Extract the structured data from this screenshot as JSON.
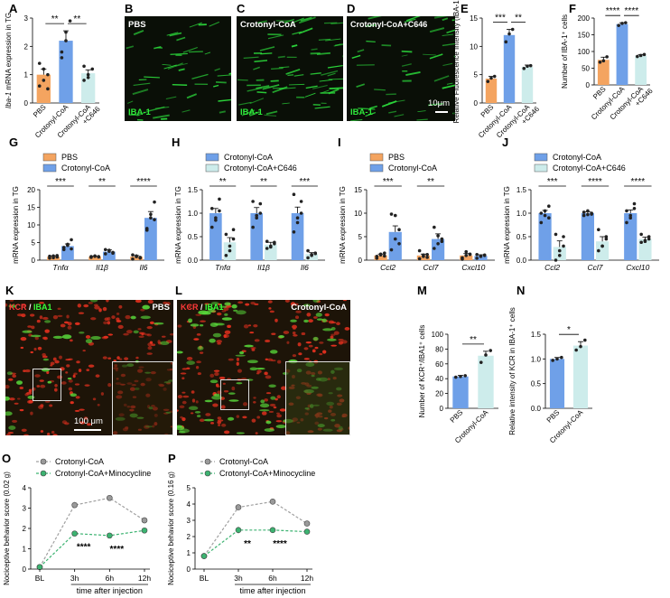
{
  "panels": {
    "A": "A",
    "B": "B",
    "C": "C",
    "D": "D",
    "E": "E",
    "F": "F",
    "G": "G",
    "H": "H",
    "I": "I",
    "J": "J",
    "K": "K",
    "L": "L",
    "M": "M",
    "N": "N",
    "O": "O",
    "P": "P"
  },
  "micrographs": {
    "B": {
      "label": "PBS",
      "stain": "IBA-1"
    },
    "C": {
      "label": "Crotonyl-CoA",
      "stain": "IBA-1"
    },
    "D": {
      "label": "Crotonyl-CoA+C646",
      "stain": "IBA-1",
      "scale": "10μm"
    },
    "K": {
      "stain_red": "KCR",
      "sep": " / ",
      "stain_green": "IBA1",
      "label": "PBS",
      "scale": "100 μm"
    },
    "L": {
      "stain_red": "KCR",
      "sep": " / ",
      "stain_green": "IBA1",
      "label": "Crotonyl-CoA"
    }
  },
  "colors": {
    "pbs": "#f4a460",
    "crotonyl": "#6fa0e8",
    "c646": "#cdeceb",
    "grey_line": "#a0a0a0",
    "green_line": "#3cb371"
  },
  "chart_data": [
    {
      "id": "A",
      "type": "bar",
      "ylabel": "Iba-1 mRNA expression in TG",
      "categories": [
        "PBS",
        "Crotonyl-CoA",
        "Crotonyl-CoA +C646"
      ],
      "values": [
        1.0,
        2.2,
        1.05
      ],
      "errors": [
        0.2,
        0.35,
        0.12
      ],
      "ylim": [
        0,
        3
      ],
      "yticks": [
        0,
        1,
        2,
        3
      ],
      "colors": [
        "#f4a460",
        "#6fa0e8",
        "#cdeceb"
      ],
      "points": [
        [
          0.6,
          0.8,
          1.0,
          1.4,
          1.2,
          0.5
        ],
        [
          1.6,
          2.5,
          2.9,
          1.8,
          2.2
        ],
        [
          0.8,
          1.0,
          1.2,
          1.3,
          0.9
        ]
      ],
      "sig": [
        {
          "from": 0,
          "to": 1,
          "label": "**"
        },
        {
          "from": 1,
          "to": 2,
          "label": "**"
        }
      ]
    },
    {
      "id": "E",
      "type": "bar",
      "ylabel": "Relative Fluorescence Intensity (IBA-1)",
      "categories": [
        "PBS",
        "Crotonyl-CoA",
        "Crotonyl-CoA +C646"
      ],
      "values": [
        4.3,
        12.0,
        6.4
      ],
      "errors": [
        0.4,
        1.0,
        0.3
      ],
      "ylim": [
        0,
        15
      ],
      "yticks": [
        0,
        5,
        10,
        15
      ],
      "colors": [
        "#f4a460",
        "#6fa0e8",
        "#cdeceb"
      ],
      "points": [
        [
          3.8,
          4.4,
          4.7
        ],
        [
          10.8,
          12.2,
          13.0
        ],
        [
          6.1,
          6.5,
          6.6
        ]
      ],
      "sig": [
        {
          "from": 0,
          "to": 1,
          "label": "***"
        },
        {
          "from": 1,
          "to": 2,
          "label": "**"
        }
      ]
    },
    {
      "id": "F",
      "type": "bar",
      "ylabel": "Number of IBA-1⁺ cells",
      "categories": [
        "PBS",
        "Crotonyl-CoA",
        "Crotonyl-CoA +C646"
      ],
      "values": [
        75,
        182,
        88
      ],
      "errors": [
        8,
        4,
        3
      ],
      "ylim": [
        0,
        200
      ],
      "yticks": [
        0,
        50,
        100,
        150,
        200
      ],
      "colors": [
        "#f4a460",
        "#6fa0e8",
        "#cdeceb"
      ],
      "points": [
        [
          68,
          72,
          84
        ],
        [
          178,
          184,
          186
        ],
        [
          85,
          88,
          91
        ]
      ],
      "sig": [
        {
          "from": 0,
          "to": 1,
          "label": "****"
        },
        {
          "from": 1,
          "to": 2,
          "label": "****"
        }
      ]
    },
    {
      "id": "G",
      "type": "bar",
      "ylabel": "mRNA expression in TG",
      "legend": [
        "PBS",
        "Crotonyl-CoA"
      ],
      "categories": [
        "Tnfα",
        "Il1β",
        "Il6"
      ],
      "series": [
        {
          "name": "PBS",
          "values": [
            1.0,
            1.0,
            1.0
          ],
          "errors": [
            0.2,
            0.1,
            0.3
          ]
        },
        {
          "name": "Crotonyl-CoA",
          "values": [
            4.0,
            2.4,
            12.0
          ],
          "errors": [
            0.6,
            0.5,
            1.8
          ]
        }
      ],
      "points": [
        [
          [
            0.6,
            1.2,
            0.9,
            1.1,
            0.7,
            1.3
          ],
          [
            3.0,
            4.5,
            5.8,
            3.6,
            4.2,
            3.2
          ]
        ],
        [
          [
            0.8,
            1.1,
            0.9,
            1.0,
            1.2,
            1.0
          ],
          [
            1.8,
            2.8,
            2.0,
            3.0,
            2.5,
            2.2
          ]
        ],
        [
          [
            0.3,
            1.2,
            0.8,
            1.5,
            1.0,
            0.6
          ],
          [
            8.5,
            12.0,
            16.5,
            9.0,
            13.0,
            11.5
          ]
        ]
      ],
      "ylim": [
        0,
        20
      ],
      "yticks": [
        0,
        5,
        10,
        15,
        20
      ],
      "colors": [
        "#f4a460",
        "#6fa0e8"
      ],
      "sig": [
        "***",
        "**",
        "****"
      ]
    },
    {
      "id": "H",
      "type": "bar",
      "ylabel": "mRNA expression in TG",
      "legend": [
        "Crotonyl-CoA",
        "Crotonyl-CoA+C646"
      ],
      "categories": [
        "Tnfα",
        "Il1β",
        "Il6"
      ],
      "series": [
        {
          "name": "Crotonyl-CoA",
          "values": [
            1.0,
            1.0,
            1.0
          ],
          "errors": [
            0.1,
            0.12,
            0.13
          ]
        },
        {
          "name": "Crotonyl-CoA+C646",
          "values": [
            0.38,
            0.33,
            0.13
          ],
          "errors": [
            0.1,
            0.05,
            0.03
          ]
        }
      ],
      "points": [
        [
          [
            0.7,
            0.85,
            1.3,
            1.1,
            0.9,
            1.05
          ],
          [
            0.1,
            0.3,
            0.45,
            0.55,
            0.2,
            0.65
          ]
        ],
        [
          [
            0.7,
            0.9,
            1.2,
            1.25,
            0.95,
            1.0
          ],
          [
            0.25,
            0.3,
            0.38,
            0.4,
            0.28,
            0.35
          ]
        ],
        [
          [
            0.6,
            0.8,
            1.25,
            1.4,
            0.9,
            1.0
          ],
          [
            0.05,
            0.1,
            0.15,
            0.2,
            0.12,
            0.14
          ]
        ]
      ],
      "ylim": [
        0,
        1.5
      ],
      "yticks": [
        0.0,
        0.5,
        1.0,
        1.5
      ],
      "colors": [
        "#6fa0e8",
        "#cdeceb"
      ],
      "sig": [
        "**",
        "**",
        "***"
      ]
    },
    {
      "id": "I",
      "type": "bar",
      "ylabel": "mRNA expression in TG",
      "legend": [
        "PBS",
        "Crotonyl-CoA"
      ],
      "categories": [
        "Ccl2",
        "Ccl7",
        "Cxcl10"
      ],
      "series": [
        {
          "name": "PBS",
          "values": [
            1.0,
            1.0,
            1.0
          ],
          "errors": [
            0.3,
            0.3,
            0.4
          ]
        },
        {
          "name": "Crotonyl-CoA",
          "values": [
            6.0,
            4.5,
            0.9
          ],
          "errors": [
            1.3,
            1.1,
            0.25
          ]
        }
      ],
      "points": [
        [
          [
            0.4,
            1.1,
            1.5,
            0.8,
            1.3,
            0.9
          ],
          [
            2.2,
            4.5,
            6.5,
            9.8,
            9.5,
            3.5
          ]
        ],
        [
          [
            0.3,
            0.8,
            1.2,
            2.0,
            1.1,
            0.6
          ],
          [
            2.5,
            3.5,
            4.5,
            7.0,
            5.2,
            4.0
          ]
        ],
        [
          [
            0.2,
            1.8,
            1.3,
            0.5,
            1.0,
            1.2
          ],
          [
            0.4,
            0.8,
            1.0,
            1.2,
            0.9,
            1.1
          ]
        ]
      ],
      "ylim": [
        0,
        15
      ],
      "yticks": [
        0,
        5,
        10,
        15
      ],
      "colors": [
        "#f4a460",
        "#6fa0e8"
      ],
      "sig": [
        "***",
        "**",
        ""
      ]
    },
    {
      "id": "J",
      "type": "bar",
      "ylabel": "mRNA expression in TG",
      "legend": [
        "Crotonyl-CoA",
        "Crotonyl-CoA+C646"
      ],
      "categories": [
        "Ccl2",
        "Ccl7",
        "Cxcl10"
      ],
      "series": [
        {
          "name": "Crotonyl-CoA",
          "values": [
            1.0,
            1.0,
            1.0
          ],
          "errors": [
            0.06,
            0.03,
            0.07
          ]
        },
        {
          "name": "Crotonyl-CoA+C646",
          "values": [
            0.28,
            0.4,
            0.45
          ],
          "errors": [
            0.13,
            0.1,
            0.04
          ]
        }
      ],
      "points": [
        [
          [
            0.8,
            0.95,
            1.15,
            1.0,
            1.05,
            0.9
          ],
          [
            0.0,
            0.1,
            0.3,
            0.55,
            0.2,
            0.5
          ]
        ],
        [
          [
            0.95,
            0.97,
            1.0,
            1.02,
            1.05,
            0.98
          ],
          [
            0.2,
            0.3,
            0.45,
            0.65,
            0.3,
            0.5
          ]
        ],
        [
          [
            0.8,
            0.9,
            1.2,
            1.05,
            0.95,
            1.1
          ],
          [
            0.38,
            0.42,
            0.5,
            0.55,
            0.4,
            0.45
          ]
        ]
      ],
      "ylim": [
        0,
        1.5
      ],
      "yticks": [
        0.0,
        0.5,
        1.0,
        1.5
      ],
      "colors": [
        "#6fa0e8",
        "#cdeceb"
      ],
      "sig": [
        "***",
        "****",
        "****"
      ]
    },
    {
      "id": "M",
      "type": "bar",
      "ylabel": "Number of KCR⁺/IBA1⁺ cells",
      "categories": [
        "PBS",
        "Crotonyl-CoA"
      ],
      "values": [
        43,
        71
      ],
      "errors": [
        1.5,
        6
      ],
      "ylim": [
        0,
        100
      ],
      "yticks": [
        0,
        20,
        40,
        60,
        80,
        100
      ],
      "colors": [
        "#6fa0e8",
        "#cdeceb"
      ],
      "points": [
        [
          42,
          43,
          44
        ],
        [
          62,
          72,
          78
        ]
      ],
      "sig": [
        {
          "from": 0,
          "to": 1,
          "label": "**"
        }
      ]
    },
    {
      "id": "N",
      "type": "bar",
      "ylabel": "Relative intensity of KCR in IBA-1⁺ cells",
      "categories": [
        "PBS",
        "Crotonyl-CoA"
      ],
      "values": [
        1.0,
        1.27
      ],
      "errors": [
        0.03,
        0.08
      ],
      "ylim": [
        0,
        1.5
      ],
      "yticks": [
        0.0,
        0.5,
        1.0,
        1.5
      ],
      "colors": [
        "#6fa0e8",
        "#cdeceb"
      ],
      "points": [
        [
          0.97,
          1.0,
          1.03
        ],
        [
          1.18,
          1.25,
          1.38
        ]
      ],
      "sig": [
        {
          "from": 0,
          "to": 1,
          "label": "*"
        }
      ]
    },
    {
      "id": "O",
      "type": "line",
      "ylabel": "Nociceptive behavior score (0.02 g)",
      "xlabel": "time after injection",
      "categories": [
        "BL",
        "3h",
        "6h",
        "12h"
      ],
      "series": [
        {
          "name": "Crotonyl-CoA",
          "values": [
            0.1,
            3.15,
            3.5,
            2.4
          ],
          "errors": [
            0.05,
            0.15,
            0.1,
            0.15
          ]
        },
        {
          "name": "Crotonyl-CoA+Minocycline",
          "values": [
            0.1,
            1.75,
            1.65,
            1.9
          ],
          "errors": [
            0.05,
            0.1,
            0.1,
            0.1
          ]
        }
      ],
      "ylim": [
        0,
        4
      ],
      "yticks": [
        0,
        1,
        2,
        3,
        4
      ],
      "sig": [
        "",
        "****",
        "****",
        ""
      ]
    },
    {
      "id": "P",
      "type": "line",
      "ylabel": "Nociceptive behavior score (0.16 g)",
      "xlabel": "time after injection",
      "categories": [
        "BL",
        "3h",
        "6h",
        "12h"
      ],
      "series": [
        {
          "name": "Crotonyl-CoA",
          "values": [
            0.8,
            3.8,
            4.15,
            2.8
          ],
          "errors": [
            0.1,
            0.1,
            0.1,
            0.1
          ]
        },
        {
          "name": "Crotonyl-CoA+Minocycline",
          "values": [
            0.8,
            2.4,
            2.4,
            2.3
          ],
          "errors": [
            0.1,
            0.2,
            0.15,
            0.1
          ]
        }
      ],
      "ylim": [
        0,
        5
      ],
      "yticks": [
        0,
        1,
        2,
        3,
        4,
        5
      ],
      "sig": [
        "",
        "**",
        "****",
        ""
      ]
    }
  ]
}
